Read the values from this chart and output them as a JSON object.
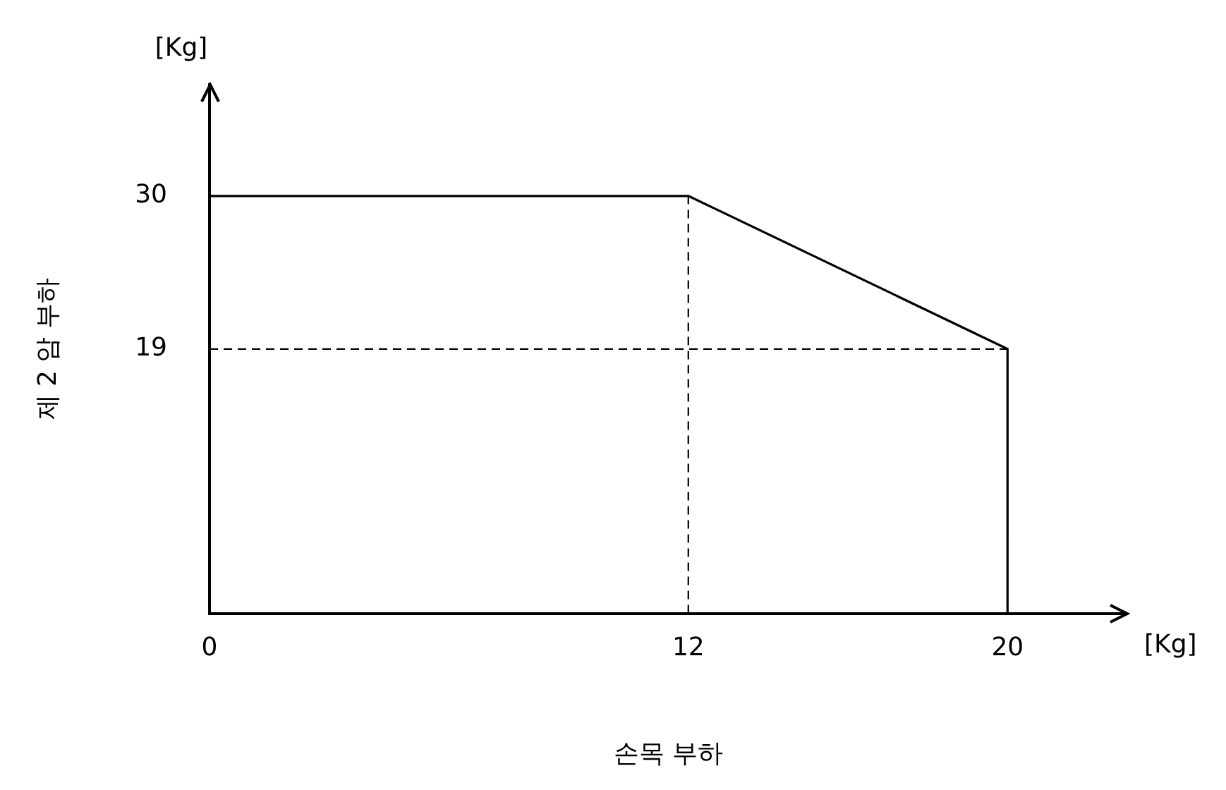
{
  "chart_data": {
    "type": "line",
    "xlabel": "손목 부하",
    "ylabel": "제 2 암 부하",
    "annotations": [
      "[Kg]",
      "[Kg]"
    ],
    "x": [
      0,
      12,
      20,
      20
    ],
    "series": [
      {
        "color": "#000000",
        "values": [
          30,
          30,
          19,
          0
        ]
      },
      {
        "color": "#000000",
        "x": [
          12,
          12
        ],
        "values": [
          0,
          30
        ],
        "line_style": "dashed"
      },
      {
        "color": "#000000",
        "x": [
          0,
          20
        ],
        "values": [
          19,
          19
        ],
        "line_style": "dashed"
      }
    ],
    "xlim": [
      0,
      23
    ],
    "xticks": [
      0,
      12,
      20
    ],
    "ylim": [
      0,
      38
    ],
    "yticks": [
      19,
      30
    ],
    "grid": false,
    "legend": false,
    "marker": "none",
    "line_style": "solid"
  }
}
